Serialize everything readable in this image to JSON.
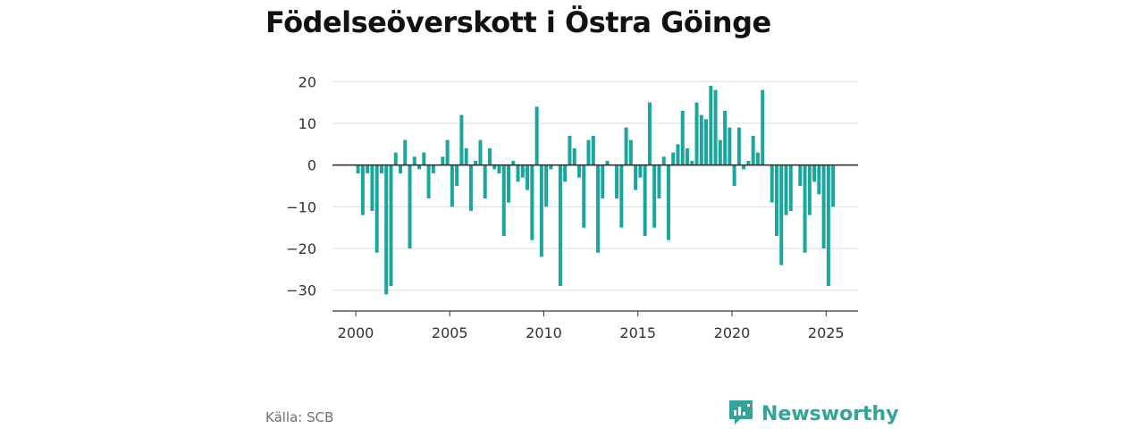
{
  "title": "Födelseöverskott i Östra Göinge",
  "source": "Källa: SCB",
  "brand": {
    "name": "Newsworthy",
    "logo_icon": "bar-chart-speech-bubble-icon",
    "color": "#35a39a"
  },
  "chart_data": {
    "type": "bar",
    "title": "Födelseöverskott i Östra Göinge",
    "xlabel": "",
    "ylabel": "",
    "bar_color": "#1aa69c",
    "grid": true,
    "ylim": [
      -35,
      22
    ],
    "xlim": [
      2000,
      2025.99
    ],
    "yticks": [
      20,
      10,
      0,
      -10,
      -20,
      -30
    ],
    "ytick_labels": [
      "20",
      "10",
      "0",
      "−10",
      "−20",
      "−30"
    ],
    "xticks": [
      2000,
      2005,
      2010,
      2015,
      2020,
      2025
    ],
    "xtick_labels": [
      "2000",
      "2005",
      "2010",
      "2015",
      "2020",
      "2025"
    ],
    "series": [
      {
        "start_year": 2000,
        "frequency": "quarterly",
        "values": [
          -2,
          -12,
          -2,
          -11,
          -21,
          -2,
          -31,
          -29,
          3,
          -2,
          6,
          -20,
          2,
          -1,
          3,
          -8,
          -2,
          0,
          2,
          6,
          -10,
          -5,
          12,
          4,
          -11,
          1,
          6,
          -8,
          4,
          -1,
          -2,
          -17,
          -9,
          1,
          -4,
          -3,
          -6,
          -18,
          14,
          -22,
          -10,
          -1,
          0,
          -29,
          -4,
          7,
          4,
          -3,
          -15,
          6,
          7,
          -21,
          -8,
          1,
          0,
          -8,
          -15,
          9,
          6,
          -6,
          -3,
          -17,
          15,
          -15,
          -8,
          2,
          -18,
          3,
          5,
          13,
          4,
          1,
          15,
          12,
          11,
          19,
          18,
          6,
          13,
          9,
          -5,
          9,
          -1,
          1,
          7,
          3,
          18,
          0,
          -9,
          -17,
          -24,
          -12,
          -11,
          0,
          -5,
          -21,
          -12,
          -4,
          -7,
          -20,
          -29,
          -10
        ]
      }
    ]
  }
}
